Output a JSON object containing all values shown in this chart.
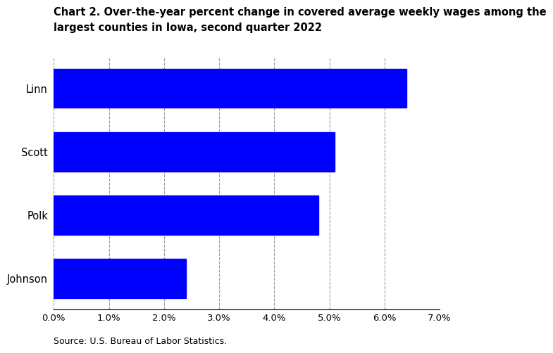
{
  "title_line1": "Chart 2. Over-the-year percent change in covered average weekly wages among the",
  "title_line2": "largest counties in Iowa, second quarter 2022",
  "categories": [
    "Johnson",
    "Polk",
    "Scott",
    "Linn"
  ],
  "values": [
    0.024,
    0.048,
    0.051,
    0.064
  ],
  "bar_color": "#0000FF",
  "xlim": [
    0,
    0.07
  ],
  "xticks": [
    0.0,
    0.01,
    0.02,
    0.03,
    0.04,
    0.05,
    0.06,
    0.07
  ],
  "xtick_labels": [
    "0.0%",
    "1.0%",
    "2.0%",
    "3.0%",
    "4.0%",
    "5.0%",
    "6.0%",
    "7.0%"
  ],
  "source": "Source: U.S. Bureau of Labor Statistics.",
  "title_fontsize": 10.5,
  "tick_fontsize": 9.5,
  "ylabel_fontsize": 10.5,
  "source_fontsize": 9,
  "bar_height": 0.62,
  "background_color": "#ffffff",
  "grid_color": "#999999"
}
